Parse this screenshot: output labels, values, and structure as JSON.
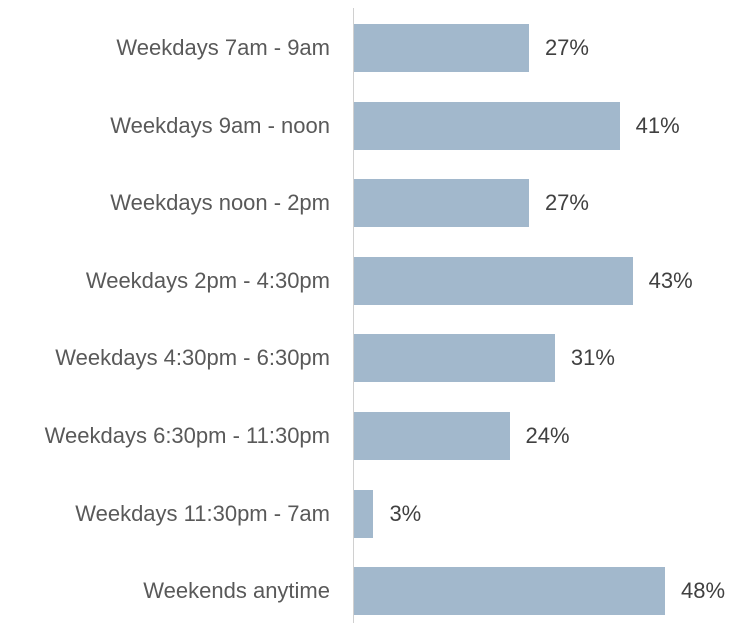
{
  "chart_data": {
    "type": "bar",
    "orientation": "horizontal",
    "categories": [
      "Weekdays 7am - 9am",
      "Weekdays 9am - noon",
      "Weekdays noon - 2pm",
      "Weekdays 2pm - 4:30pm",
      "Weekdays 4:30pm - 6:30pm",
      "Weekdays 6:30pm - 11:30pm",
      "Weekdays 11:30pm - 7am",
      "Weekends anytime"
    ],
    "values": [
      27,
      41,
      27,
      43,
      31,
      24,
      3,
      48
    ],
    "value_labels": [
      "27%",
      "41%",
      "27%",
      "43%",
      "31%",
      "24%",
      "3%",
      "48%"
    ],
    "color": "#a2b8cc"
  }
}
